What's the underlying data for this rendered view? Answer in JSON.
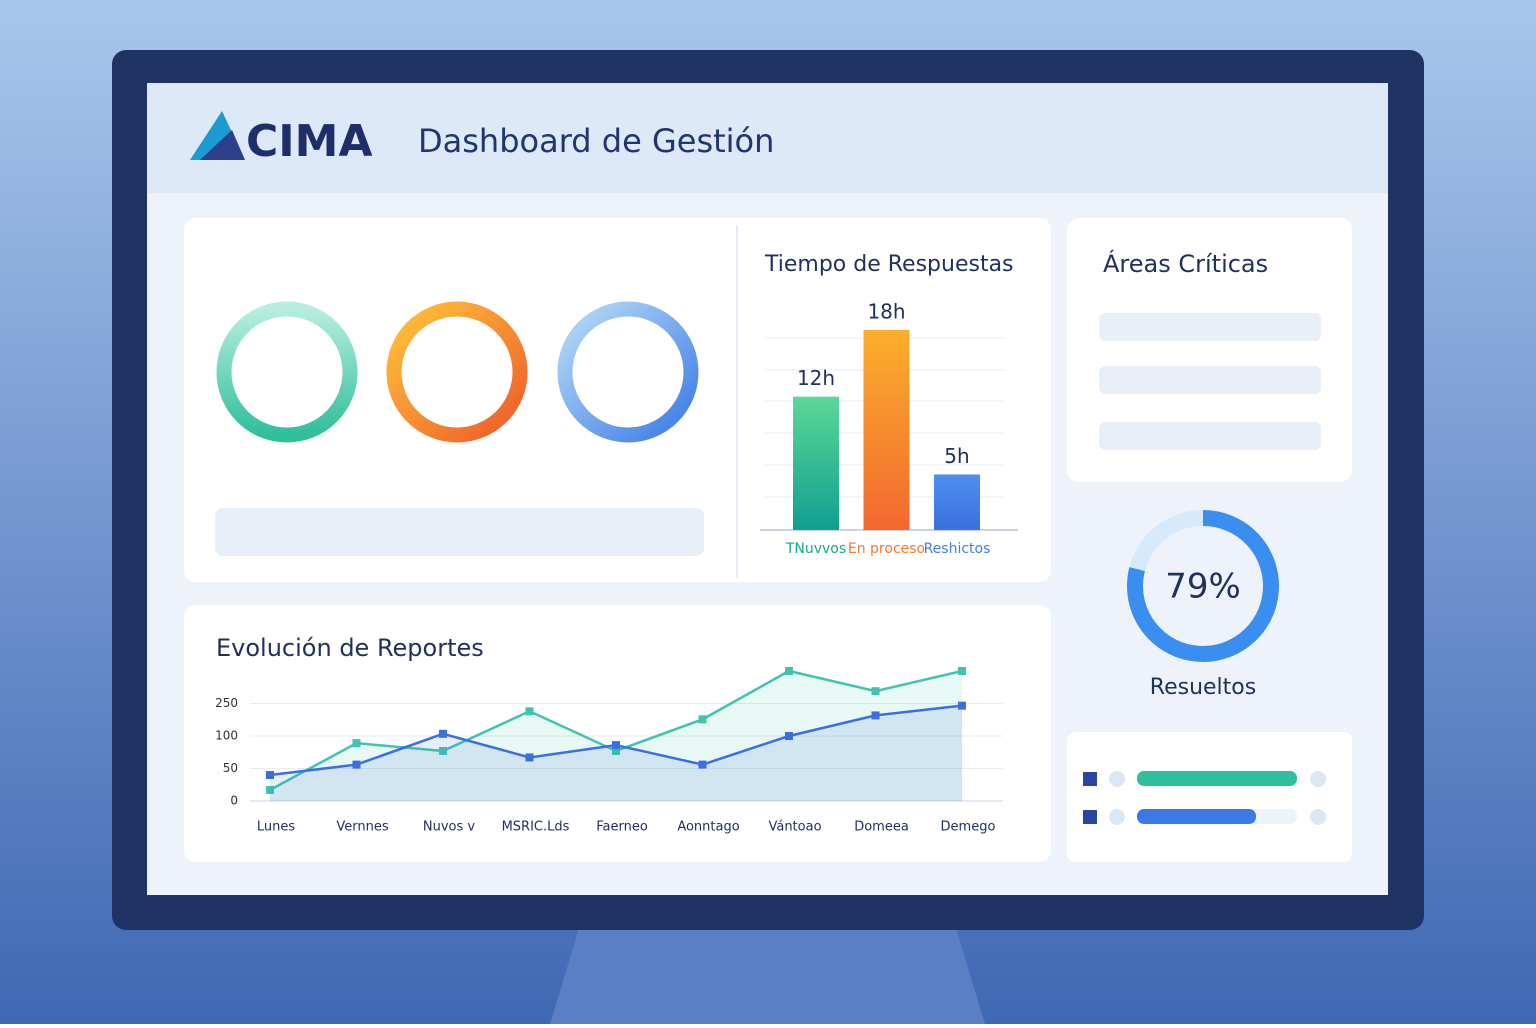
{
  "header": {
    "logo": "CIMA",
    "title": "Dashboard de Gestión"
  },
  "chart_data": [
    {
      "type": "bar",
      "title": "Tiempo de Respuestas",
      "categories": [
        "TNuvvos",
        "En proceso",
        "Reshictos"
      ],
      "values": [
        12,
        18,
        5
      ],
      "value_labels": [
        "12h",
        "18h",
        "5h"
      ],
      "colors": [
        "#14a88c",
        "#f5782a",
        "#3f7ee8"
      ]
    },
    {
      "type": "line",
      "title": "Evolución de Reportes",
      "categories": [
        "Lunes",
        "Vernnes",
        "Nuvos v",
        "MSRIC.Lds",
        "Faerneo",
        "Aonntago",
        "Vántoao",
        "Domeea",
        "Demego"
      ],
      "series": [
        {
          "color": "#3fc4b0",
          "values": [
            17,
            89,
            77,
            214,
            77,
            177,
            300,
            269,
            300
          ]
        },
        {
          "color": "#3a6fe0",
          "values": [
            40,
            56,
            110,
            67,
            86,
            56,
            100,
            195,
            240
          ]
        }
      ],
      "ylim": [
        0,
        300
      ],
      "yticks": [
        0,
        50,
        100,
        250
      ]
    },
    {
      "type": "gauge",
      "value": 79,
      "value_label": "79%",
      "label": "Resueltos",
      "color": "#3a8ef0"
    }
  ],
  "areas": {
    "title": "Áreas Críticas"
  }
}
